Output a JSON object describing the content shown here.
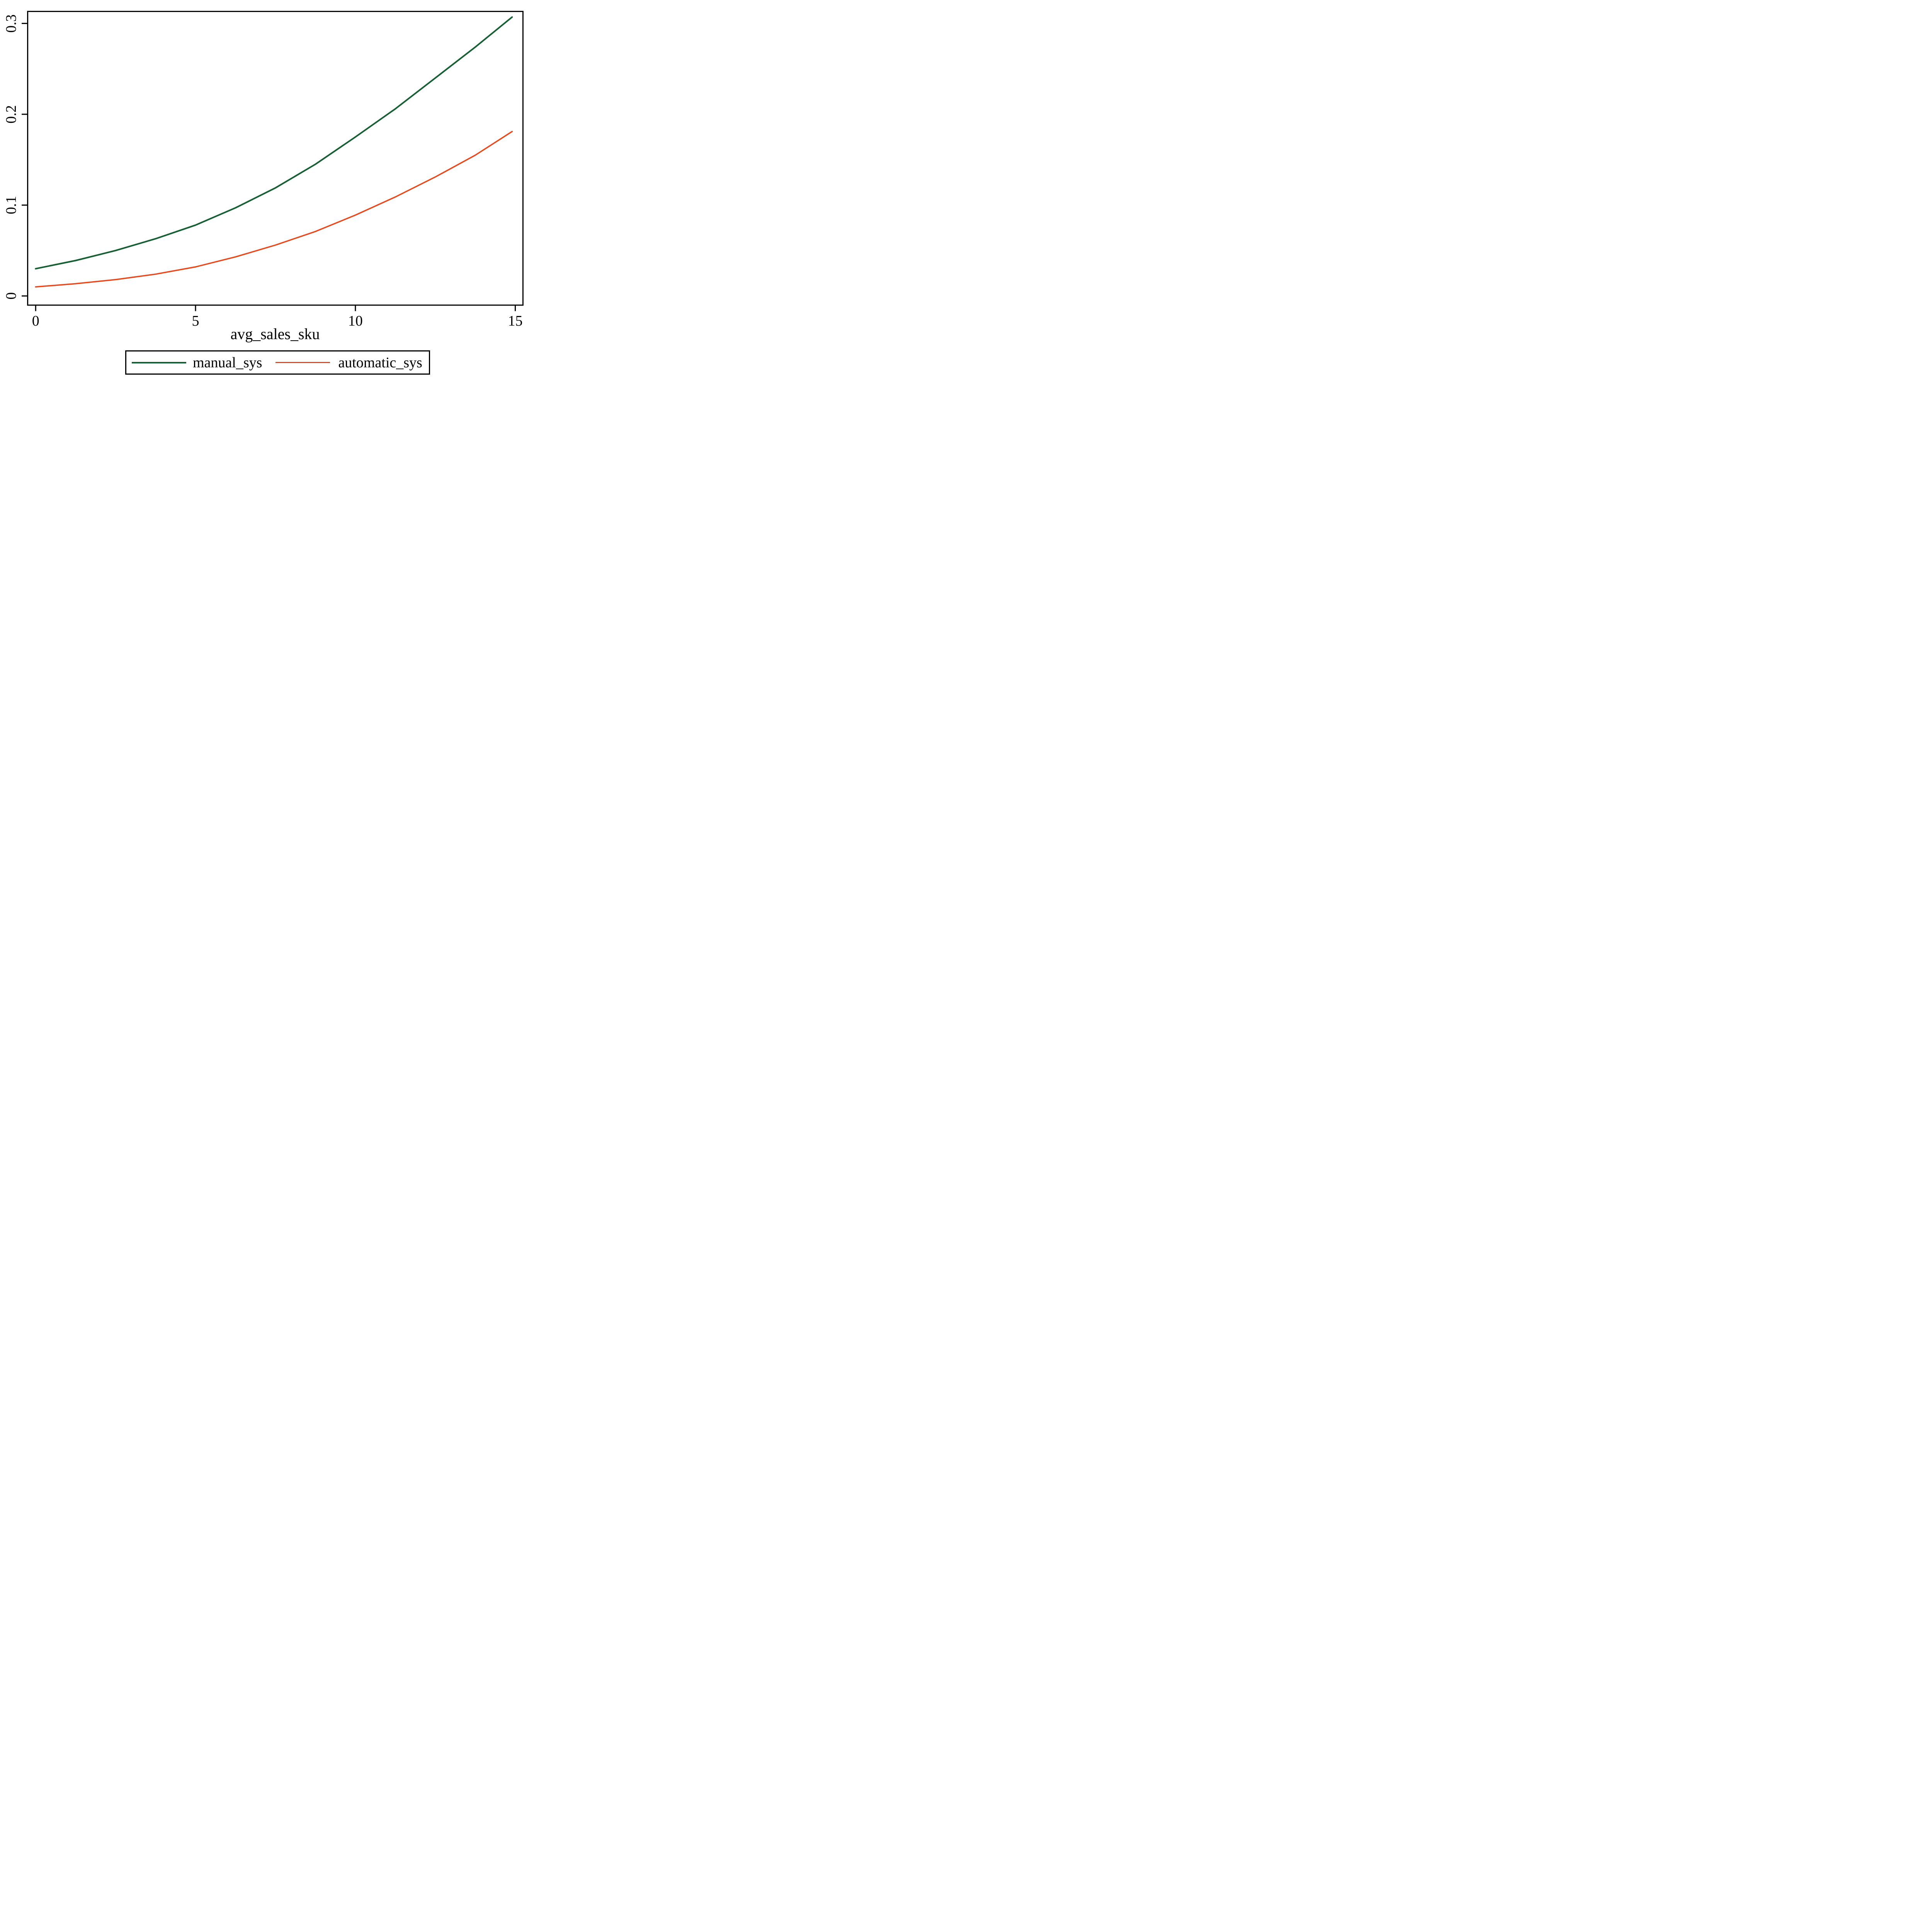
{
  "chart_data": {
    "type": "line",
    "title": "",
    "xlabel": "avg_sales_sku",
    "ylabel": "",
    "grid": false,
    "legend_position": "bottom-outside",
    "axis_color": "#000000",
    "background_color": "#ffffff",
    "xlim": [
      -0.25,
      15.24
    ],
    "ylim": [
      -0.0101,
      0.3132
    ],
    "x_ticks": [
      {
        "value": 0,
        "label": "0"
      },
      {
        "value": 5,
        "label": "5"
      },
      {
        "value": 10,
        "label": "10"
      },
      {
        "value": 15,
        "label": "15"
      }
    ],
    "y_ticks": [
      {
        "value": 0,
        "label": "0"
      },
      {
        "value": 0.1,
        "label": "0.1"
      },
      {
        "value": 0.2,
        "label": "0.2"
      },
      {
        "value": 0.3,
        "label": "0.3"
      }
    ],
    "x": [
      0,
      1.25,
      2.5,
      3.75,
      5,
      6.25,
      7.5,
      8.75,
      10,
      11.25,
      12.5,
      13.75,
      14.9
    ],
    "series": [
      {
        "name": "manual_sys",
        "color": "#165f33",
        "values": [
          0.03,
          0.039,
          0.05,
          0.063,
          0.078,
          0.097,
          0.119,
          0.145,
          0.175,
          0.206,
          0.24,
          0.274,
          0.307
        ]
      },
      {
        "name": "automatic_sys",
        "color": "#e7481c",
        "values": [
          0.01,
          0.0135,
          0.018,
          0.024,
          0.032,
          0.043,
          0.056,
          0.071,
          0.089,
          0.109,
          0.131,
          0.155,
          0.181
        ]
      }
    ]
  }
}
